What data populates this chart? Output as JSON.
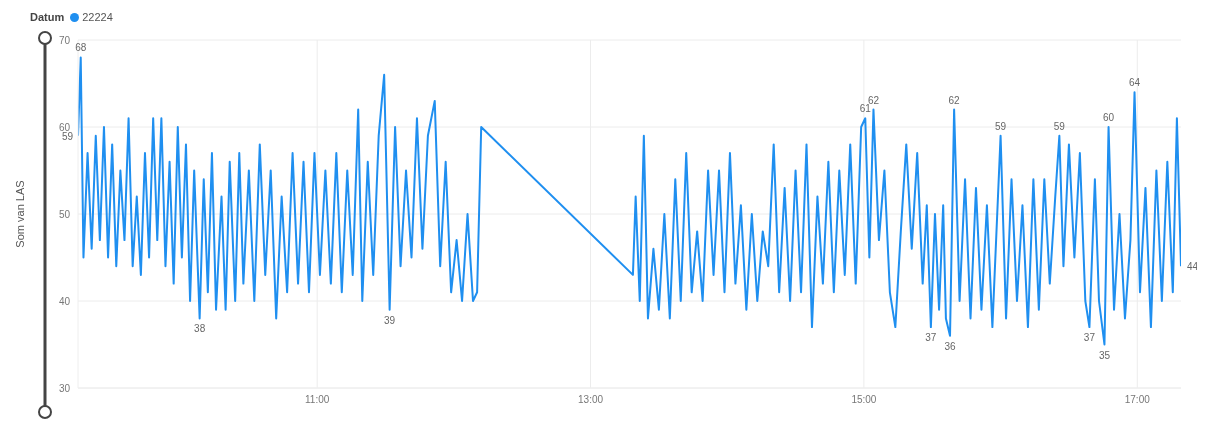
{
  "chart_data": {
    "type": "line",
    "legend_title": "Datum",
    "ylabel": "Som van LAS",
    "legend": "top left",
    "grid": true,
    "ylim": [
      30,
      70
    ],
    "yticks": [
      30,
      40,
      50,
      60,
      70
    ],
    "xlim": [
      9.25,
      17.32
    ],
    "xticks": [
      {
        "value": 11,
        "label": "11:00"
      },
      {
        "value": 13,
        "label": "13:00"
      },
      {
        "value": 15,
        "label": "15:00"
      },
      {
        "value": 17,
        "label": "17:00"
      }
    ],
    "x": [
      9.25,
      9.27,
      9.29,
      9.32,
      9.35,
      9.38,
      9.41,
      9.44,
      9.47,
      9.5,
      9.53,
      9.56,
      9.59,
      9.62,
      9.65,
      9.68,
      9.71,
      9.74,
      9.77,
      9.8,
      9.83,
      9.86,
      9.89,
      9.92,
      9.95,
      9.98,
      10.01,
      10.04,
      10.07,
      10.1,
      10.14,
      10.17,
      10.2,
      10.23,
      10.26,
      10.3,
      10.33,
      10.36,
      10.4,
      10.43,
      10.46,
      10.5,
      10.54,
      10.58,
      10.62,
      10.66,
      10.7,
      10.74,
      10.78,
      10.82,
      10.86,
      10.9,
      10.94,
      10.98,
      11.02,
      11.06,
      11.1,
      11.14,
      11.18,
      11.22,
      11.26,
      11.3,
      11.33,
      11.37,
      11.41,
      11.45,
      11.49,
      11.53,
      11.57,
      11.61,
      11.65,
      11.69,
      11.73,
      11.77,
      11.81,
      11.86,
      11.9,
      11.94,
      11.98,
      12.02,
      12.06,
      12.1,
      12.14,
      12.17,
      12.2,
      13.31,
      13.33,
      13.36,
      13.39,
      13.42,
      13.46,
      13.5,
      13.54,
      13.58,
      13.62,
      13.66,
      13.7,
      13.74,
      13.78,
      13.82,
      13.86,
      13.9,
      13.94,
      13.98,
      14.02,
      14.06,
      14.1,
      14.14,
      14.18,
      14.22,
      14.26,
      14.3,
      14.34,
      14.38,
      14.42,
      14.46,
      14.5,
      14.54,
      14.58,
      14.62,
      14.66,
      14.7,
      14.74,
      14.78,
      14.82,
      14.86,
      14.9,
      14.94,
      14.98,
      15.01,
      15.04,
      15.07,
      15.11,
      15.15,
      15.19,
      15.23,
      15.27,
      15.31,
      15.35,
      15.39,
      15.43,
      15.46,
      15.49,
      15.52,
      15.55,
      15.58,
      15.6,
      15.63,
      15.66,
      15.7,
      15.74,
      15.78,
      15.82,
      15.86,
      15.9,
      15.94,
      16.0,
      16.04,
      16.08,
      16.12,
      16.16,
      16.2,
      16.24,
      16.28,
      16.32,
      16.36,
      16.4,
      16.43,
      16.46,
      16.5,
      16.54,
      16.58,
      16.62,
      16.65,
      16.69,
      16.72,
      16.76,
      16.79,
      16.83,
      16.87,
      16.91,
      16.95,
      16.98,
      17.02,
      17.06,
      17.1,
      17.14,
      17.18,
      17.22,
      17.26,
      17.29,
      17.32
    ],
    "series": [
      {
        "name": "22224",
        "color": "#1f8ff0",
        "values": [
          59,
          68,
          45,
          57,
          46,
          59,
          47,
          60,
          45,
          58,
          44,
          55,
          47,
          61,
          44,
          52,
          43,
          57,
          45,
          61,
          47,
          61,
          44,
          56,
          42,
          60,
          45,
          58,
          40,
          55,
          38,
          54,
          41,
          57,
          39,
          52,
          39,
          56,
          40,
          57,
          42,
          55,
          40,
          58,
          43,
          55,
          38,
          52,
          41,
          57,
          42,
          56,
          41,
          57,
          43,
          55,
          42,
          57,
          41,
          55,
          43,
          62,
          40,
          56,
          43,
          59,
          66,
          39,
          60,
          44,
          55,
          45,
          61,
          46,
          59,
          63,
          44,
          56,
          41,
          47,
          40,
          50,
          40,
          41,
          60,
          43,
          52,
          40,
          59,
          38,
          46,
          39,
          50,
          38,
          54,
          40,
          57,
          41,
          48,
          40,
          55,
          43,
          55,
          41,
          57,
          42,
          51,
          39,
          50,
          40,
          48,
          44,
          58,
          41,
          53,
          40,
          55,
          41,
          58,
          37,
          52,
          42,
          56,
          41,
          55,
          43,
          58,
          42,
          60,
          61,
          45,
          62,
          47,
          55,
          41,
          37,
          48,
          58,
          46,
          57,
          42,
          51,
          37,
          50,
          39,
          51,
          38,
          36,
          62,
          40,
          54,
          38,
          53,
          39,
          51,
          37,
          59,
          38,
          54,
          40,
          51,
          37,
          54,
          39,
          54,
          42,
          52,
          59,
          44,
          58,
          45,
          57,
          40,
          37,
          54,
          40,
          35,
          60,
          39,
          50,
          38,
          47,
          64,
          41,
          53,
          37,
          55,
          40,
          56,
          41,
          61,
          44
        ],
        "value_labels": [
          "59",
          "68",
          null,
          null,
          null,
          null,
          null,
          null,
          null,
          null,
          null,
          null,
          null,
          null,
          null,
          null,
          null,
          null,
          null,
          null,
          null,
          null,
          null,
          null,
          null,
          null,
          null,
          null,
          null,
          null,
          "38",
          null,
          null,
          null,
          null,
          null,
          null,
          null,
          null,
          null,
          null,
          null,
          null,
          null,
          null,
          null,
          null,
          null,
          null,
          null,
          null,
          null,
          null,
          null,
          null,
          null,
          null,
          null,
          null,
          null,
          null,
          null,
          null,
          null,
          null,
          null,
          null,
          "39",
          null,
          null,
          null,
          null,
          null,
          null,
          null,
          null,
          null,
          null,
          null,
          null,
          null,
          null,
          null,
          null,
          null,
          null,
          null,
          null,
          null,
          null,
          null,
          null,
          null,
          null,
          null,
          null,
          null,
          null,
          null,
          null,
          null,
          null,
          null,
          null,
          null,
          null,
          null,
          null,
          null,
          null,
          null,
          null,
          null,
          null,
          null,
          null,
          null,
          null,
          null,
          null,
          null,
          null,
          null,
          null,
          null,
          null,
          null,
          null,
          null,
          "61",
          null,
          "62",
          null,
          null,
          null,
          null,
          null,
          null,
          null,
          null,
          null,
          null,
          "37",
          null,
          null,
          null,
          null,
          "36",
          "62",
          null,
          null,
          null,
          null,
          null,
          null,
          null,
          "59",
          null,
          null,
          null,
          null,
          null,
          null,
          null,
          null,
          null,
          null,
          "59",
          null,
          null,
          null,
          null,
          null,
          "37",
          null,
          null,
          "35",
          "60",
          null,
          null,
          null,
          null,
          "64",
          null,
          null,
          null,
          null,
          null,
          null,
          null,
          null,
          "44"
        ]
      }
    ]
  }
}
